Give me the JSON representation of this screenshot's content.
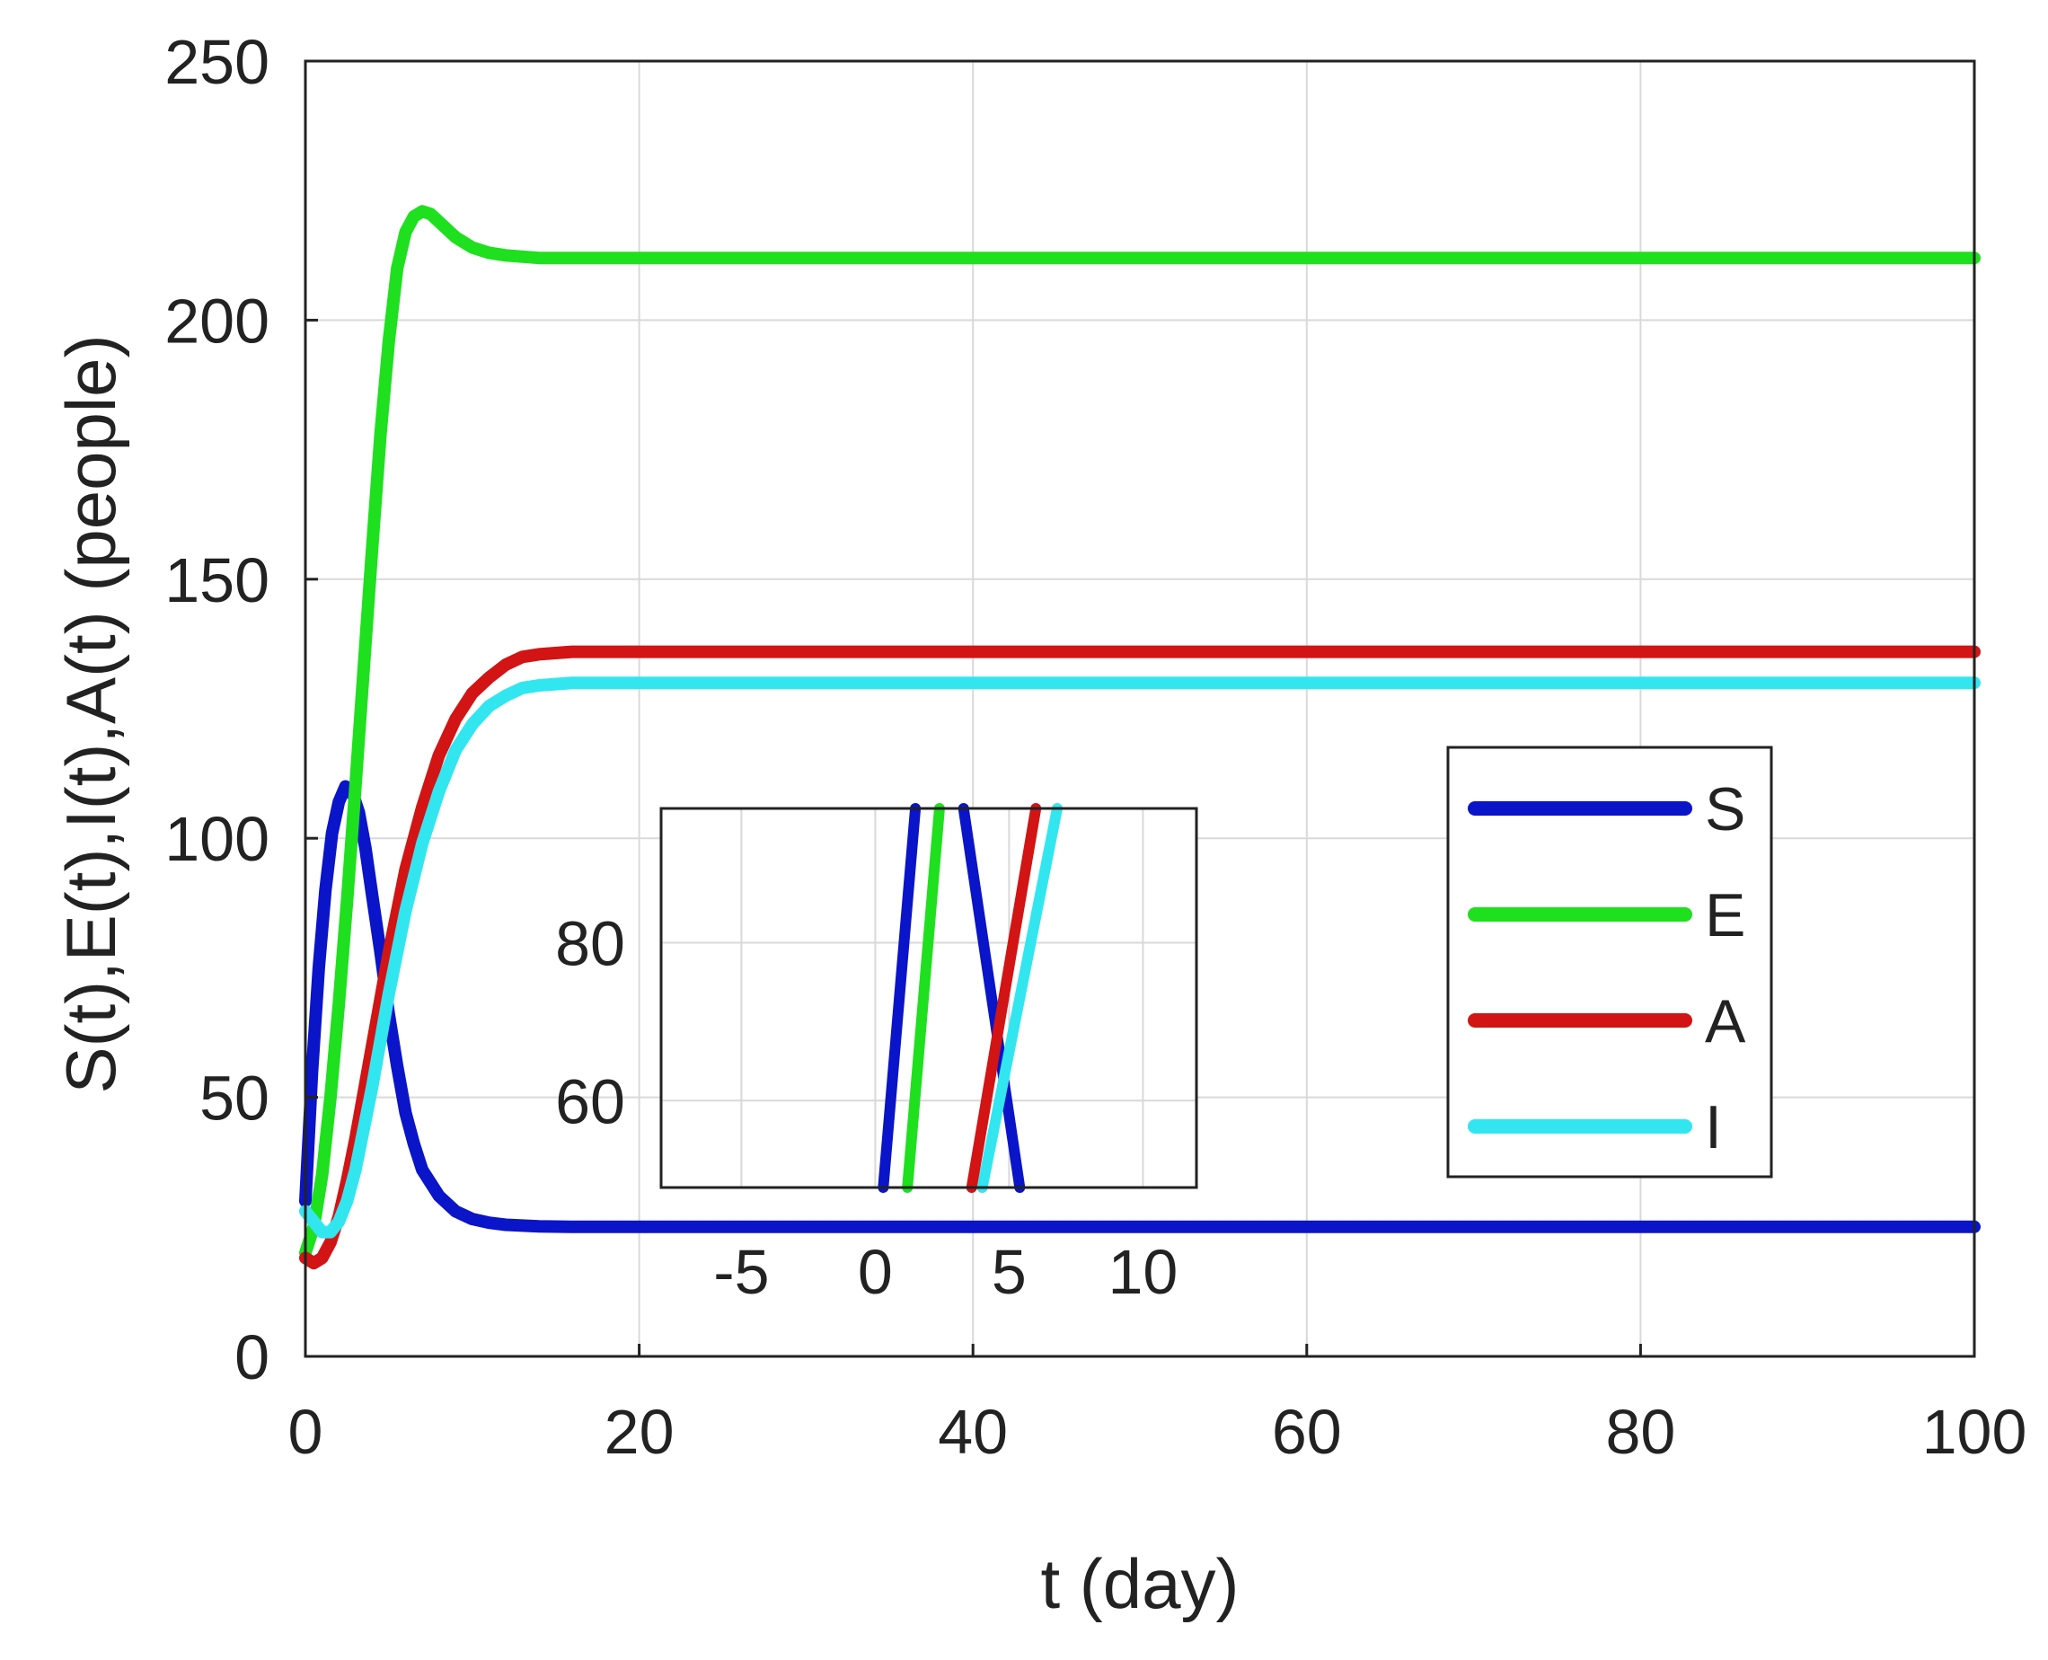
{
  "chart_data": {
    "type": "line",
    "xlabel": "t (day)",
    "ylabel": "S(t),E(t),I(t),A(t) (people)",
    "xlim": [
      0,
      100
    ],
    "ylim": [
      0,
      250
    ],
    "grid": true,
    "x_ticks": [
      "0",
      "20",
      "40",
      "60",
      "80",
      "100"
    ],
    "y_ticks": [
      "0",
      "50",
      "100",
      "150",
      "200",
      "250"
    ],
    "legend": {
      "position": "center-right",
      "entries": [
        "S",
        "E",
        "A",
        "I"
      ]
    },
    "series": [
      {
        "name": "S",
        "color": "#0a14c8",
        "x": [
          0,
          0.4,
          0.8,
          1.2,
          1.6,
          2.0,
          2.4,
          2.8,
          3.2,
          3.6,
          4,
          4.5,
          5,
          5.5,
          6,
          6.5,
          7,
          8,
          9,
          10,
          11,
          12,
          14,
          16,
          20,
          30,
          50,
          75,
          100
        ],
        "values": [
          30,
          55,
          75,
          90,
          101,
          107,
          110,
          109,
          105,
          98,
          89,
          78,
          66,
          56,
          47,
          41,
          36,
          31,
          28,
          26.5,
          25.8,
          25.4,
          25.1,
          25.0,
          25,
          25,
          25,
          25,
          25
        ]
      },
      {
        "name": "E",
        "color": "#1ee01e",
        "x": [
          0,
          0.5,
          1,
          1.5,
          2,
          2.5,
          3,
          3.5,
          4,
          4.5,
          5,
          5.5,
          6,
          6.5,
          7,
          7.5,
          8,
          9,
          10,
          11,
          12,
          14,
          16,
          20,
          30,
          50,
          75,
          100
        ],
        "values": [
          20,
          25,
          35,
          50,
          68,
          88,
          110,
          133,
          156,
          178,
          196,
          210,
          217,
          220,
          221,
          220.5,
          219,
          216,
          214,
          213,
          212.5,
          212,
          212,
          212,
          212,
          212,
          212,
          212
        ]
      },
      {
        "name": "A",
        "color": "#d21414",
        "x": [
          0,
          0.5,
          1,
          1.5,
          2,
          2.5,
          3,
          3.5,
          4,
          4.5,
          5,
          6,
          7,
          8,
          9,
          10,
          11,
          12,
          13,
          14,
          16,
          20,
          30,
          50,
          75,
          100
        ],
        "values": [
          19,
          18,
          19,
          22,
          27,
          34,
          42,
          51,
          60,
          69,
          78,
          94,
          106,
          116,
          123,
          128,
          131,
          133.5,
          135,
          135.5,
          136,
          136,
          136,
          136,
          136,
          136
        ]
      },
      {
        "name": "I",
        "color": "#32e6f0",
        "x": [
          0,
          0.5,
          1,
          1.5,
          2,
          2.5,
          3,
          3.5,
          4,
          4.5,
          5,
          6,
          7,
          8,
          9,
          10,
          11,
          12,
          13,
          14,
          16,
          20,
          30,
          50,
          75,
          100
        ],
        "values": [
          28,
          26,
          24,
          24,
          26,
          30,
          36,
          44,
          52,
          61,
          70,
          86,
          99,
          109,
          117,
          122,
          125.5,
          127.5,
          129,
          129.5,
          130,
          130,
          130,
          130,
          130,
          130
        ]
      }
    ],
    "inset": {
      "type": "line",
      "xlim": [
        -8,
        12
      ],
      "ylim": [
        49,
        97
      ],
      "x_ticks": [
        "-5",
        "0",
        "5",
        "10"
      ],
      "y_ticks": [
        "60",
        "80"
      ],
      "grid": true,
      "series": [
        {
          "name": "S-rise",
          "color": "#0a14c8",
          "x": [
            0.3,
            1.5
          ],
          "values": [
            49,
            97
          ]
        },
        {
          "name": "E",
          "color": "#1ee01e",
          "x": [
            1.2,
            2.4
          ],
          "values": [
            49,
            97
          ]
        },
        {
          "name": "S-fall",
          "color": "#0a14c8",
          "x": [
            3.3,
            5.4
          ],
          "values": [
            97,
            49
          ]
        },
        {
          "name": "A",
          "color": "#d21414",
          "x": [
            3.6,
            6.0
          ],
          "values": [
            49,
            97
          ]
        },
        {
          "name": "I",
          "color": "#32e6f0",
          "x": [
            4.0,
            6.8
          ],
          "values": [
            49,
            97
          ]
        }
      ]
    }
  }
}
